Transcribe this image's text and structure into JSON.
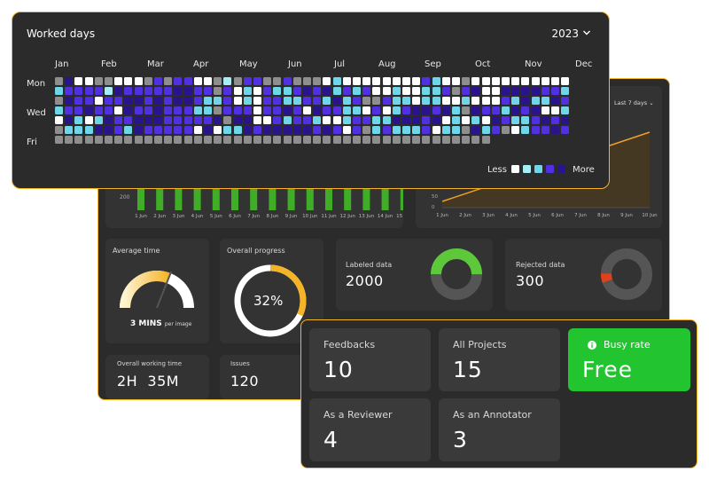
{
  "worked_days": {
    "title": "Worked days",
    "year": "2023",
    "months": [
      "Jan",
      "Feb",
      "Mar",
      "Apr",
      "May",
      "Jun",
      "Jul",
      "Aug",
      "Sep",
      "Oct",
      "Nov",
      "Dec"
    ],
    "day_labels": [
      "Mon",
      "Wed",
      "Fri"
    ],
    "legend_less": "Less",
    "legend_more": "More",
    "levels": [
      "#8e8e8e",
      "#ffffff",
      "#a8ecf5",
      "#6fd6ea",
      "#5030e0",
      "#2a148e"
    ],
    "rows": [
      "0511001110404411020440040001311111111431101111111111",
      "3444425444445544041314334545343411311334045115555443",
      "0544144554545543341314433443534004331331131114353354",
      "3445441544544433044414454154433141345545305443545113",
      "1531354455544444505511434431134433555451313154334545",
      "0333554354444415133545555545414034333413305340134454",
      "0000000000000000000000000000000000000000000000000000"
    ],
    "last_row_count": 44
  },
  "dashboard": {
    "range_label": "Last 7 days",
    "bar_dates": [
      "1 Jun",
      "2 Jun",
      "3 Jun",
      "4 Jun",
      "5 Jun",
      "6 Jun",
      "7 Jun",
      "8 Jun",
      "9 Jun",
      "10 Jun",
      "11 Jun",
      "12 Jun",
      "13 Jun",
      "14 Jun",
      "15 Jun"
    ],
    "bar_tick": "200",
    "line_dates": [
      "1 Jun",
      "2 Jun",
      "3 Jun",
      "4 Jun",
      "5 Jun",
      "6 Jun",
      "7 Jun",
      "8 Jun",
      "9 Jun",
      "10 Jun"
    ],
    "line_ticks": [
      "50",
      "0"
    ],
    "average_time": {
      "label": "Average time",
      "value": "3 MINS",
      "unit": "per image",
      "fraction": 0.62
    },
    "overall_progress": {
      "label": "Overall progress",
      "value": "32%",
      "percent": 32
    },
    "labeled_data": {
      "label": "Labeled data",
      "value": "2000",
      "fraction": 0.5
    },
    "rejected_data": {
      "label": "Rejected data",
      "value": "300",
      "fraction": 0.06
    },
    "working_time": {
      "label": "Overall  working time",
      "value": "2H  35M"
    },
    "issues": {
      "label": "Issues",
      "value": "120"
    }
  },
  "stats": {
    "feedbacks": {
      "label": "Feedbacks",
      "value": "10"
    },
    "all_projects": {
      "label": "All Projects",
      "value": "15"
    },
    "busy_rate": {
      "label": "Busy rate",
      "value": "Free",
      "icon": "info-icon"
    },
    "reviewer": {
      "label": "As a Reviewer",
      "value": "4"
    },
    "annotator": {
      "label": "As an Annotator",
      "value": "3"
    }
  },
  "colors": {
    "accent": "#f5b428",
    "green": "#22c430",
    "line": "#f0a020",
    "donut_green": "#5cc83a",
    "rejected": "#e0401a"
  }
}
